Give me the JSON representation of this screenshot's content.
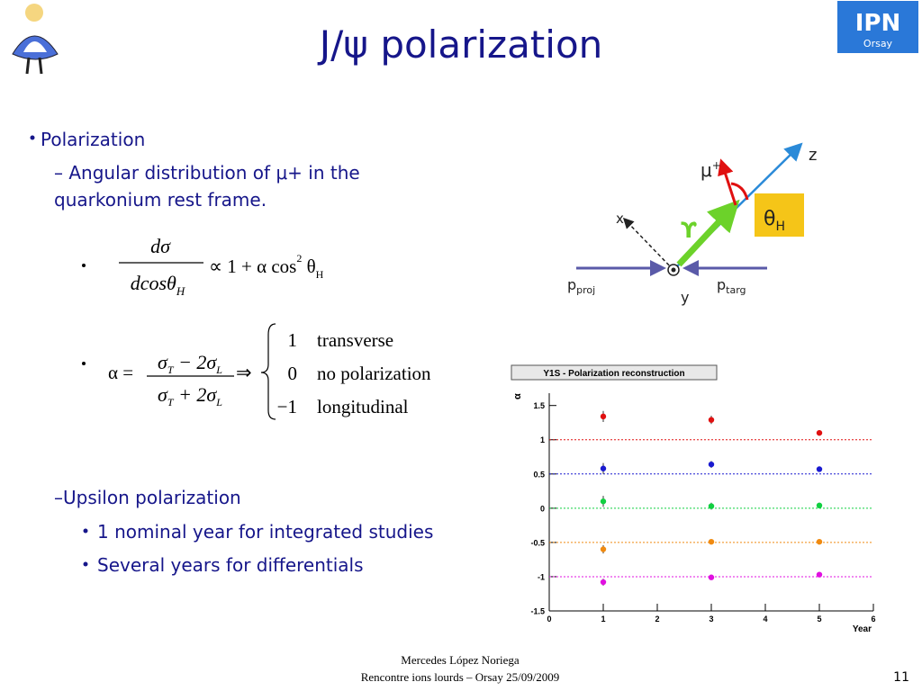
{
  "slide": {
    "title": "J/ψ polarization",
    "bullet1": "Polarization",
    "sub1_lines": [
      "– Angular distribution of μ+ in the",
      "quarkonium rest frame."
    ],
    "formula1": {
      "numerator": [
        "dσ"
      ],
      "denominator": [
        "dcosθ",
        "H"
      ],
      "rhs": [
        "∝ 1 + α cos",
        "2",
        " θ",
        "H"
      ]
    },
    "formula2": {
      "lhs": "α =",
      "numerator": [
        "σ",
        "T",
        " − 2σ",
        "L"
      ],
      "denominator": [
        "σ",
        "T",
        " + 2σ",
        "L"
      ],
      "implies": "⇒",
      "cases": [
        {
          "value": "1",
          "label": "transverse"
        },
        {
          "value": "0",
          "label": "no polarization"
        },
        {
          "value": "−1",
          "label": "longitudinal"
        }
      ]
    },
    "sub2": "–Upsilon polarization",
    "sub2_items": [
      "1 nominal year for integrated studies",
      "Several years for differentials"
    ],
    "diagram": {
      "z": "z",
      "mu": [
        "μ",
        "+"
      ],
      "theta": [
        "θ",
        "H"
      ],
      "upsilon": "ϒ",
      "x": "x",
      "p_proj": [
        "p",
        "proj"
      ],
      "p_targ": [
        "p",
        "targ"
      ],
      "y": "y"
    },
    "logo": [
      "IPN",
      "Orsay"
    ],
    "footer": [
      "Mercedes López Noriega",
      "Rencontre ions lourds – Orsay 25/09/2009"
    ],
    "page_number": "11"
  },
  "chart_data": {
    "type": "scatter",
    "title": "Y1S - Polarization reconstruction",
    "ylabel": "α",
    "xlabel": "Year",
    "xlim": [
      0,
      6
    ],
    "xticks": [
      0,
      1,
      2,
      3,
      4,
      5,
      6
    ],
    "ylim": [
      -1.5,
      1.68
    ],
    "yticks": [
      -1.5,
      -1,
      -0.5,
      0,
      0.5,
      1,
      1.5
    ],
    "x": [
      1,
      3,
      5
    ],
    "series": [
      {
        "color": "#e01010",
        "reference": 1,
        "values": [
          1.34,
          1.29,
          1.1
        ],
        "errors": [
          0.08,
          0.06,
          0.04
        ]
      },
      {
        "color": "#1a1ad0",
        "reference": 0.5,
        "values": [
          0.58,
          0.64,
          0.57
        ],
        "errors": [
          0.08,
          0.05,
          0.03
        ]
      },
      {
        "color": "#10d040",
        "reference": 0,
        "values": [
          0.1,
          0.03,
          0.04
        ],
        "errors": [
          0.08,
          0.05,
          0.04
        ]
      },
      {
        "color": "#f08a10",
        "reference": -0.5,
        "values": [
          -0.6,
          -0.49,
          -0.49
        ],
        "errors": [
          0.06,
          0.03,
          0.02
        ]
      },
      {
        "color": "#e010e0",
        "reference": -1,
        "values": [
          -1.08,
          -1.01,
          -0.97
        ],
        "errors": [
          0.05,
          0.02,
          0.02
        ]
      }
    ]
  }
}
